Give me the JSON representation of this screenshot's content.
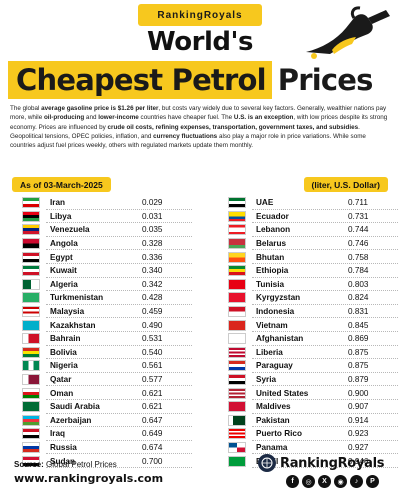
{
  "brand_tag": "RankingRoyals",
  "title_line1": "World's",
  "title_highlight": "Cheapest Petrol",
  "title_rest": "Prices",
  "intro": {
    "p1": "The global ",
    "b1": "average gasoline price is $1.26 per liter",
    "p2": ", but costs vary widely due to several key factors. Generally, wealthier nations pay more, while ",
    "b2": "oil-producing",
    "p3": " and ",
    "b3": "lower-income",
    "p4": " countries have cheaper fuel. The ",
    "b4": "U.S. is an exception",
    "p5": ", with low prices despite its strong economy. Prices are influenced by ",
    "b5": "crude oil costs, refining expenses, transportation, government taxes, and subsidies",
    "p6": ". Geopolitical tensions, OPEC policies, inflation, and ",
    "b6": "currency fluctuations",
    "p7": " also play a major role in price variations. While some countries adjust fuel prices weekly, others with regulated markets update them monthly."
  },
  "date_label": "As of  03-March-2025",
  "unit_label": "(liter, U.S. Dollar)",
  "left_rows": [
    {
      "country": "Iran",
      "price": "0.029",
      "flag": [
        "#239f40",
        "#ffffff",
        "#da0000"
      ],
      "dir": "h"
    },
    {
      "country": "Libya",
      "price": "0.031",
      "flag": [
        "#e70013",
        "#000000",
        "#239e46"
      ],
      "dir": "h"
    },
    {
      "country": "Venezuela",
      "price": "0.035",
      "flag": [
        "#ffcc00",
        "#00247d",
        "#cf142b"
      ],
      "dir": "h"
    },
    {
      "country": "Angola",
      "price": "0.328",
      "flag": [
        "#cc092f",
        "#000000"
      ],
      "dir": "h"
    },
    {
      "country": "Egypt",
      "price": "0.336",
      "flag": [
        "#ce1126",
        "#ffffff",
        "#000000"
      ],
      "dir": "h"
    },
    {
      "country": "Kuwait",
      "price": "0.340",
      "flag": [
        "#007a3d",
        "#ffffff",
        "#ce1126"
      ],
      "dir": "h"
    },
    {
      "country": "Algeria",
      "price": "0.342",
      "flag": [
        "#006233",
        "#ffffff"
      ],
      "dir": "v"
    },
    {
      "country": "Turkmenistan",
      "price": "0.428",
      "flag": [
        "#28ae66"
      ],
      "dir": "h"
    },
    {
      "country": "Malaysia",
      "price": "0.459",
      "flag": [
        "#cc0001",
        "#ffffff",
        "#cc0001",
        "#ffffff"
      ],
      "dir": "h"
    },
    {
      "country": "Kazakhstan",
      "price": "0.490",
      "flag": [
        "#00afca"
      ],
      "dir": "h"
    },
    {
      "country": "Bahrain",
      "price": "0.531",
      "flag": [
        "#ffffff",
        "#ce1126",
        "#ce1126"
      ],
      "dir": "v"
    },
    {
      "country": "Bolivia",
      "price": "0.540",
      "flag": [
        "#d52b1e",
        "#f9e300",
        "#007934"
      ],
      "dir": "h"
    },
    {
      "country": "Nigeria",
      "price": "0.561",
      "flag": [
        "#008751",
        "#ffffff",
        "#008751"
      ],
      "dir": "v"
    },
    {
      "country": "Qatar",
      "price": "0.577",
      "flag": [
        "#ffffff",
        "#8a1538",
        "#8a1538"
      ],
      "dir": "v"
    },
    {
      "country": "Oman",
      "price": "0.621",
      "flag": [
        "#ffffff",
        "#db161b",
        "#008000"
      ],
      "dir": "h"
    },
    {
      "country": "Saudi Arabia",
      "price": "0.621",
      "flag": [
        "#006c35"
      ],
      "dir": "h"
    },
    {
      "country": "Azerbaijan",
      "price": "0.647",
      "flag": [
        "#00b5e2",
        "#ef3340",
        "#509e2f"
      ],
      "dir": "h"
    },
    {
      "country": "Iraq",
      "price": "0.649",
      "flag": [
        "#ce1126",
        "#ffffff",
        "#000000"
      ],
      "dir": "h"
    },
    {
      "country": "Russia",
      "price": "0.674",
      "flag": [
        "#ffffff",
        "#0039a6",
        "#d52b1e"
      ],
      "dir": "h"
    },
    {
      "country": "Sudan",
      "price": "0.700",
      "flag": [
        "#d21034",
        "#ffffff",
        "#000000"
      ],
      "dir": "h"
    }
  ],
  "right_rows": [
    {
      "country": "UAE",
      "price": "0.711",
      "flag": [
        "#00732f",
        "#ffffff",
        "#000000"
      ],
      "dir": "h"
    },
    {
      "country": "Ecuador",
      "price": "0.731",
      "flag": [
        "#ffdd00",
        "#ffdd00",
        "#034ea2",
        "#ed1c24"
      ],
      "dir": "h"
    },
    {
      "country": "Lebanon",
      "price": "0.744",
      "flag": [
        "#ed1c24",
        "#ffffff",
        "#ffffff",
        "#ed1c24"
      ],
      "dir": "h"
    },
    {
      "country": "Belarus",
      "price": "0.746",
      "flag": [
        "#c8313e",
        "#c8313e",
        "#4aa657"
      ],
      "dir": "h"
    },
    {
      "country": "Bhutan",
      "price": "0.758",
      "flag": [
        "#ffd520",
        "#ff4e12"
      ],
      "dir": "h"
    },
    {
      "country": "Ethiopia",
      "price": "0.784",
      "flag": [
        "#078930",
        "#fcdd09",
        "#da121a"
      ],
      "dir": "h"
    },
    {
      "country": "Tunisia",
      "price": "0.803",
      "flag": [
        "#e70013"
      ],
      "dir": "h"
    },
    {
      "country": "Kyrgyzstan",
      "price": "0.824",
      "flag": [
        "#e8112d"
      ],
      "dir": "h"
    },
    {
      "country": "Indonesia",
      "price": "0.831",
      "flag": [
        "#ce1126",
        "#ffffff"
      ],
      "dir": "h"
    },
    {
      "country": "Vietnam",
      "price": "0.845",
      "flag": [
        "#da251d"
      ],
      "dir": "h"
    },
    {
      "country": "Afghanistan",
      "price": "0.869",
      "flag": [
        "#ffffff"
      ],
      "dir": "h"
    },
    {
      "country": "Liberia",
      "price": "0.875",
      "flag": [
        "#bf0a30",
        "#ffffff",
        "#bf0a30",
        "#ffffff",
        "#bf0a30"
      ],
      "dir": "h"
    },
    {
      "country": "Paraguay",
      "price": "0.875",
      "flag": [
        "#d52b1e",
        "#ffffff",
        "#0038a8"
      ],
      "dir": "h"
    },
    {
      "country": "Syria",
      "price": "0.879",
      "flag": [
        "#ce1126",
        "#ffffff",
        "#000000"
      ],
      "dir": "h"
    },
    {
      "country": "United States",
      "price": "0.900",
      "flag": [
        "#b22234",
        "#ffffff",
        "#b22234",
        "#ffffff",
        "#b22234"
      ],
      "dir": "h"
    },
    {
      "country": "Maldives",
      "price": "0.907",
      "flag": [
        "#d21034"
      ],
      "dir": "h"
    },
    {
      "country": "Pakistan",
      "price": "0.914",
      "flag": [
        "#ffffff",
        "#01411c",
        "#01411c",
        "#01411c"
      ],
      "dir": "v"
    },
    {
      "country": "Puerto Rico",
      "price": "0.923",
      "flag": [
        "#ed0000",
        "#ffffff",
        "#ed0000",
        "#ffffff",
        "#ed0000"
      ],
      "dir": "h"
    },
    {
      "country": "Panama",
      "price": "0.927",
      "flag": [
        "#ffffff",
        "#d21034",
        "#005293",
        "#ffffff"
      ],
      "dir": "q"
    },
    {
      "country": "Brazil",
      "price": "0.946",
      "flag": [
        "#009c3b"
      ],
      "dir": "h"
    }
  ],
  "source_label": "Source:",
  "source_value": " Global Petrol Prices",
  "url": "www.rankingroyals.com",
  "footer_brand": "RankingRoyals",
  "socials": [
    "f",
    "◎",
    "X",
    "◉",
    "♪",
    "P"
  ]
}
